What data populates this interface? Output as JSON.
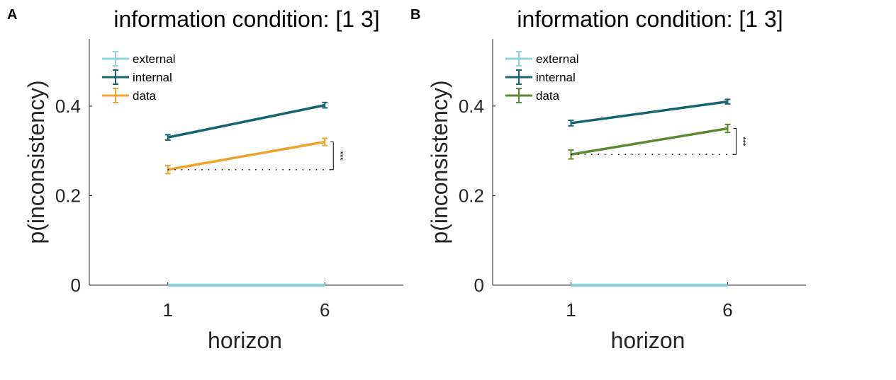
{
  "chart_data": [
    {
      "type": "line",
      "panel_label": "A",
      "title": "information condition: [1 3]",
      "xlabel": "horizon",
      "ylabel": "p(inconsistency)",
      "categories": [
        "1",
        "6"
      ],
      "xlim": [
        0.5,
        2.5
      ],
      "ylim": [
        0,
        0.55
      ],
      "yticks": [
        0,
        0.2,
        0.4
      ],
      "ytick_labels": [
        "0",
        "0.2",
        "0.4"
      ],
      "grid": false,
      "legend_position": "top-left",
      "series": [
        {
          "name": "external",
          "color": "#8ed2dd",
          "values": [
            0.0,
            0.0
          ],
          "err": [
            0.0,
            0.0
          ]
        },
        {
          "name": "internal",
          "color": "#14656f",
          "values": [
            0.33,
            0.402
          ],
          "err": [
            0.006,
            0.006
          ]
        },
        {
          "name": "data",
          "color": "#eea32c",
          "values": [
            0.258,
            0.32
          ],
          "err": [
            0.009,
            0.008
          ]
        }
      ],
      "annotation": {
        "text": "***",
        "compare_series": "data"
      }
    },
    {
      "type": "line",
      "panel_label": "B",
      "title": "information condition: [1 3]",
      "xlabel": "horizon",
      "ylabel": "p(inconsistency)",
      "categories": [
        "1",
        "6"
      ],
      "xlim": [
        0.5,
        2.5
      ],
      "ylim": [
        0,
        0.55
      ],
      "yticks": [
        0,
        0.2,
        0.4
      ],
      "ytick_labels": [
        "0",
        "0.2",
        "0.4"
      ],
      "grid": false,
      "legend_position": "top-left",
      "series": [
        {
          "name": "external",
          "color": "#8ed2dd",
          "values": [
            0.0,
            0.0
          ],
          "err": [
            0.0,
            0.0
          ]
        },
        {
          "name": "internal",
          "color": "#14656f",
          "values": [
            0.362,
            0.41
          ],
          "err": [
            0.006,
            0.005
          ]
        },
        {
          "name": "data",
          "color": "#5b8a2e",
          "values": [
            0.292,
            0.35
          ],
          "err": [
            0.01,
            0.009
          ]
        }
      ],
      "annotation": {
        "text": "***",
        "compare_series": "data"
      }
    }
  ]
}
